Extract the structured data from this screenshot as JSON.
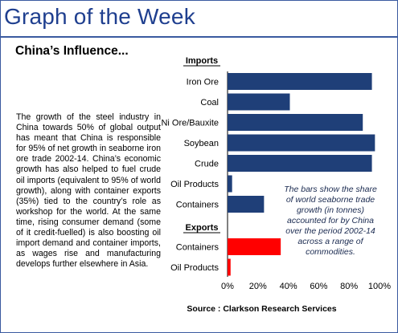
{
  "header": {
    "title": "Graph of the Week",
    "subtitle": "China’s Influence..."
  },
  "body_text": "The growth of the steel industry in China towards 50% of global output has meant that China is responsible for 95% of net growth in seaborne iron ore trade 2002-14. China’s economic growth has also helped to fuel crude oil imports (equivalent to 95% of world growth), along with container exports (35%) tied to the country’s role as workshop for the world. At the same time, rising consumer demand (some of it credit-fuelled) is also boosting oil import demand and container imports, as wages rise and manufacturing develops further elsewhere in Asia.",
  "source": "Source : Clarkson Research Services",
  "chart_data": {
    "type": "bar",
    "orientation": "horizontal",
    "groups": [
      {
        "label": "Imports",
        "color": "#1f3f78",
        "categories": [
          "Iron Ore",
          "Coal",
          "Ni Ore/Bauxite",
          "Soybean",
          "Crude",
          "Oil Products",
          "Containers"
        ],
        "values": [
          95,
          41,
          89,
          97,
          95,
          3,
          24
        ]
      },
      {
        "label": "Exports",
        "color": "#ff0000",
        "categories": [
          "Containers",
          "Oil Products"
        ],
        "values": [
          35,
          2
        ]
      }
    ],
    "xlim": [
      0,
      100
    ],
    "x_ticks": [
      "0%",
      "20%",
      "40%",
      "60%",
      "80%",
      "100%"
    ],
    "annotation": "The bars show the share of world seaborne trade growth (in tonnes) accounted for by China over the period 2002-14 across a range of commodities.",
    "grid": false
  }
}
